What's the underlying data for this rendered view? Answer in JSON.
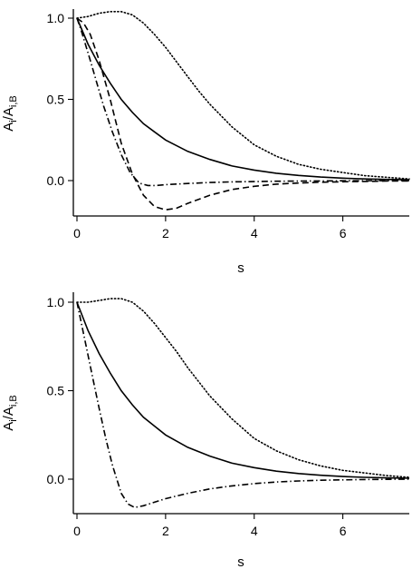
{
  "chart_data": [
    {
      "type": "line",
      "panel": "top",
      "xlabel": "s",
      "ylabel": {
        "base": "A",
        "sub": "i",
        "divider": "/",
        "base2": "A",
        "sub2": "i,B"
      },
      "xlim": [
        0,
        7.5
      ],
      "ylim": [
        -0.2,
        1.05
      ],
      "xticks": [
        0,
        2,
        4,
        6
      ],
      "yticks": [
        0.0,
        0.5,
        1.0
      ],
      "ytick_labels": [
        "0.0",
        "0.5",
        "1.0"
      ],
      "xtick_labels": [
        "0",
        "2",
        "4",
        "6"
      ],
      "grid": false,
      "series": [
        {
          "style": "solid",
          "x": [
            0,
            0.25,
            0.5,
            0.75,
            1,
            1.25,
            1.5,
            1.75,
            2,
            2.5,
            3,
            3.5,
            4,
            4.5,
            5,
            5.5,
            6,
            6.5,
            7,
            7.5
          ],
          "y": [
            1.0,
            0.84,
            0.71,
            0.6,
            0.5,
            0.42,
            0.35,
            0.3,
            0.25,
            0.18,
            0.13,
            0.09,
            0.065,
            0.045,
            0.032,
            0.022,
            0.015,
            0.01,
            0.007,
            0.005
          ]
        },
        {
          "style": "dotted",
          "x": [
            0,
            0.25,
            0.5,
            0.75,
            1,
            1.25,
            1.5,
            1.75,
            2,
            2.25,
            2.5,
            2.75,
            3,
            3.5,
            4,
            4.5,
            5,
            5.5,
            6,
            6.5,
            7,
            7.5
          ],
          "y": [
            1.0,
            1.01,
            1.03,
            1.04,
            1.04,
            1.02,
            0.97,
            0.9,
            0.82,
            0.73,
            0.64,
            0.55,
            0.47,
            0.33,
            0.22,
            0.15,
            0.1,
            0.07,
            0.05,
            0.03,
            0.02,
            0.01
          ]
        },
        {
          "style": "dashed",
          "x": [
            0,
            0.15,
            0.3,
            0.5,
            0.75,
            1,
            1.25,
            1.5,
            1.75,
            2,
            2.25,
            2.5,
            3,
            3.5,
            4,
            4.5,
            5,
            5.5,
            6,
            6.5,
            7,
            7.5
          ],
          "y": [
            1.0,
            0.97,
            0.9,
            0.74,
            0.5,
            0.23,
            0.04,
            -0.09,
            -0.16,
            -0.18,
            -0.17,
            -0.14,
            -0.09,
            -0.055,
            -0.035,
            -0.022,
            -0.015,
            -0.01,
            -0.007,
            -0.005,
            -0.003,
            -0.002
          ]
        },
        {
          "style": "dash-dot",
          "x": [
            0,
            0.1,
            0.2,
            0.3,
            0.45,
            0.6,
            0.8,
            1,
            1.2,
            1.4,
            1.6,
            1.8,
            2,
            2.5,
            3,
            3.5,
            4,
            4.5,
            5,
            5.5,
            6,
            6.5,
            7,
            7.5
          ],
          "y": [
            1.0,
            0.92,
            0.83,
            0.74,
            0.6,
            0.46,
            0.3,
            0.16,
            0.05,
            -0.015,
            -0.03,
            -0.03,
            -0.025,
            -0.018,
            -0.012,
            -0.008,
            -0.006,
            -0.004,
            -0.003,
            -0.002,
            -0.001,
            -0.001,
            0,
            0
          ]
        }
      ]
    },
    {
      "type": "line",
      "panel": "bottom",
      "xlabel": "s",
      "ylabel": {
        "base": "A",
        "sub": "i",
        "divider": "/",
        "base2": "A",
        "sub2": "i,B"
      },
      "xlim": [
        0,
        7.5
      ],
      "ylim": [
        -0.2,
        1.05
      ],
      "xticks": [
        0,
        2,
        4,
        6
      ],
      "yticks": [
        0.0,
        0.5,
        1.0
      ],
      "ytick_labels": [
        "0.0",
        "0.5",
        "1.0"
      ],
      "xtick_labels": [
        "0",
        "2",
        "4",
        "6"
      ],
      "grid": false,
      "series": [
        {
          "style": "solid",
          "x": [
            0,
            0.25,
            0.5,
            0.75,
            1,
            1.25,
            1.5,
            1.75,
            2,
            2.5,
            3,
            3.5,
            4,
            4.5,
            5,
            5.5,
            6,
            6.5,
            7,
            7.5
          ],
          "y": [
            1.0,
            0.84,
            0.71,
            0.6,
            0.5,
            0.42,
            0.35,
            0.3,
            0.25,
            0.18,
            0.13,
            0.09,
            0.065,
            0.045,
            0.032,
            0.022,
            0.015,
            0.01,
            0.007,
            0.005
          ]
        },
        {
          "style": "dotted",
          "x": [
            0,
            0.25,
            0.5,
            0.75,
            1,
            1.25,
            1.5,
            1.75,
            2,
            2.25,
            2.5,
            2.75,
            3,
            3.5,
            4,
            4.5,
            5,
            5.5,
            6,
            6.5,
            7,
            7.5
          ],
          "y": [
            1.0,
            1.0,
            1.01,
            1.02,
            1.02,
            1.0,
            0.95,
            0.88,
            0.8,
            0.72,
            0.63,
            0.55,
            0.47,
            0.34,
            0.23,
            0.16,
            0.11,
            0.075,
            0.05,
            0.035,
            0.02,
            0.01
          ]
        },
        {
          "style": "dash-dot",
          "x": [
            0,
            0.1,
            0.2,
            0.35,
            0.5,
            0.65,
            0.8,
            1,
            1.15,
            1.3,
            1.5,
            1.75,
            2,
            2.5,
            3,
            3.5,
            4,
            4.5,
            5,
            5.5,
            6,
            6.5,
            7,
            7.5
          ],
          "y": [
            1.0,
            0.88,
            0.76,
            0.58,
            0.4,
            0.23,
            0.08,
            -0.08,
            -0.14,
            -0.16,
            -0.15,
            -0.13,
            -0.11,
            -0.08,
            -0.055,
            -0.038,
            -0.025,
            -0.016,
            -0.01,
            -0.006,
            -0.004,
            -0.002,
            -0.001,
            0
          ]
        }
      ]
    }
  ]
}
